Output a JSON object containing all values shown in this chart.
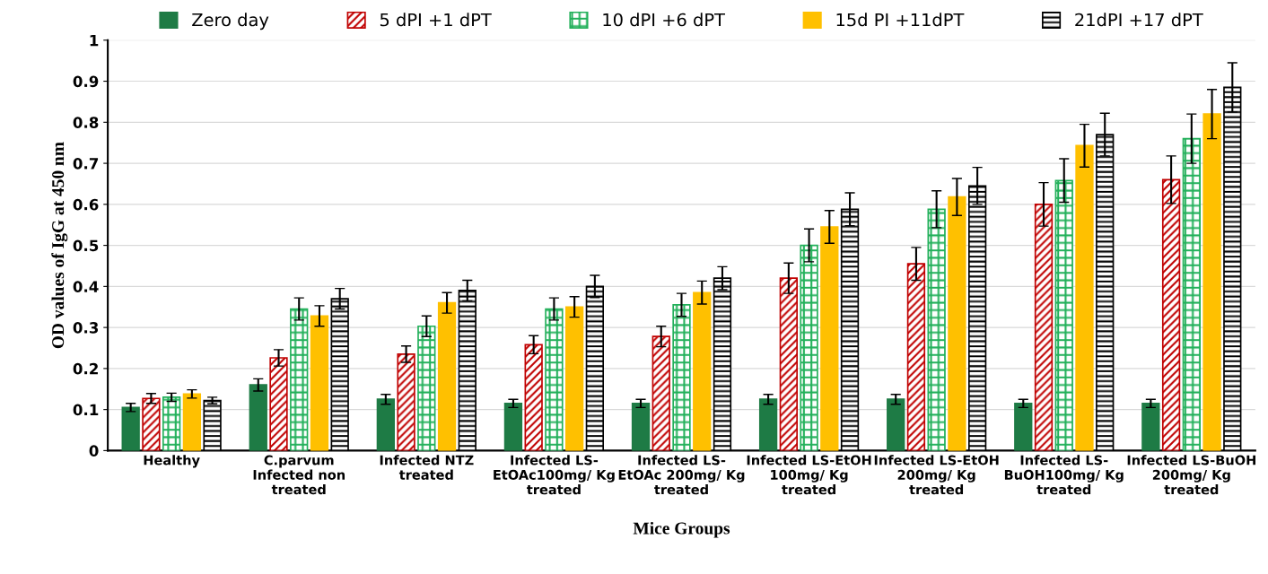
{
  "chart_data": {
    "type": "bar",
    "xlabel": "Mice Groups",
    "ylabel": "OD values of IgG at 450 nm",
    "categories": [
      "Healthy",
      "C.parvum\nInfected non\ntreated",
      "Infected NTZ\ntreated",
      "Infected LS-\nEtOAc100mg/ Kg\ntreated",
      "Infected LS-\nEtOAc 200mg/ Kg\ntreated",
      "Infected LS-EtOH\n100mg/ Kg\ntreated",
      "Infected LS-EtOH\n200mg/ Kg\ntreated",
      "Infected LS-\nBuOH100mg/ Kg\ntreated",
      "Infected LS-BuOH\n200mg/ Kg\ntreated"
    ],
    "series": [
      {
        "name": "Zero day",
        "color": "#1e7b45",
        "values": [
          0.105,
          0.16,
          0.125,
          0.115,
          0.115,
          0.125,
          0.125,
          0.115,
          0.115
        ],
        "errors": [
          0.01,
          0.015,
          0.012,
          0.01,
          0.01,
          0.012,
          0.012,
          0.01,
          0.01
        ]
      },
      {
        "name": "5 dPI +1 dPT",
        "color": "#c00000",
        "values": [
          0.127,
          0.226,
          0.235,
          0.258,
          0.278,
          0.42,
          0.455,
          0.6,
          0.66
        ],
        "errors": [
          0.012,
          0.02,
          0.02,
          0.022,
          0.025,
          0.037,
          0.04,
          0.053,
          0.058
        ]
      },
      {
        "name": "10 dPI +6 dPT",
        "color": "#22b05a",
        "values": [
          0.13,
          0.345,
          0.303,
          0.345,
          0.355,
          0.5,
          0.588,
          0.658,
          0.76
        ],
        "errors": [
          0.01,
          0.027,
          0.025,
          0.027,
          0.028,
          0.04,
          0.045,
          0.053,
          0.06
        ]
      },
      {
        "name": "15d PI +11dPT",
        "color": "#ffc000",
        "values": [
          0.138,
          0.328,
          0.36,
          0.35,
          0.385,
          0.545,
          0.618,
          0.743,
          0.82
        ],
        "errors": [
          0.01,
          0.025,
          0.025,
          0.025,
          0.028,
          0.04,
          0.045,
          0.052,
          0.06
        ]
      },
      {
        "name": "21dPI +17 dPT",
        "color": "#000000",
        "values": [
          0.122,
          0.37,
          0.39,
          0.4,
          0.42,
          0.588,
          0.645,
          0.77,
          0.885
        ],
        "errors": [
          0.008,
          0.025,
          0.025,
          0.027,
          0.028,
          0.04,
          0.045,
          0.052,
          0.06
        ]
      }
    ],
    "ylim": [
      0,
      1
    ],
    "yticks": [
      {
        "value": 0,
        "label": "0"
      },
      0.1,
      0.2,
      0.3,
      0.4,
      0.5,
      0.6,
      0.7,
      0.8,
      0.9,
      {
        "value": 1,
        "label": "1"
      }
    ],
    "grid": "y",
    "legend": "top"
  }
}
